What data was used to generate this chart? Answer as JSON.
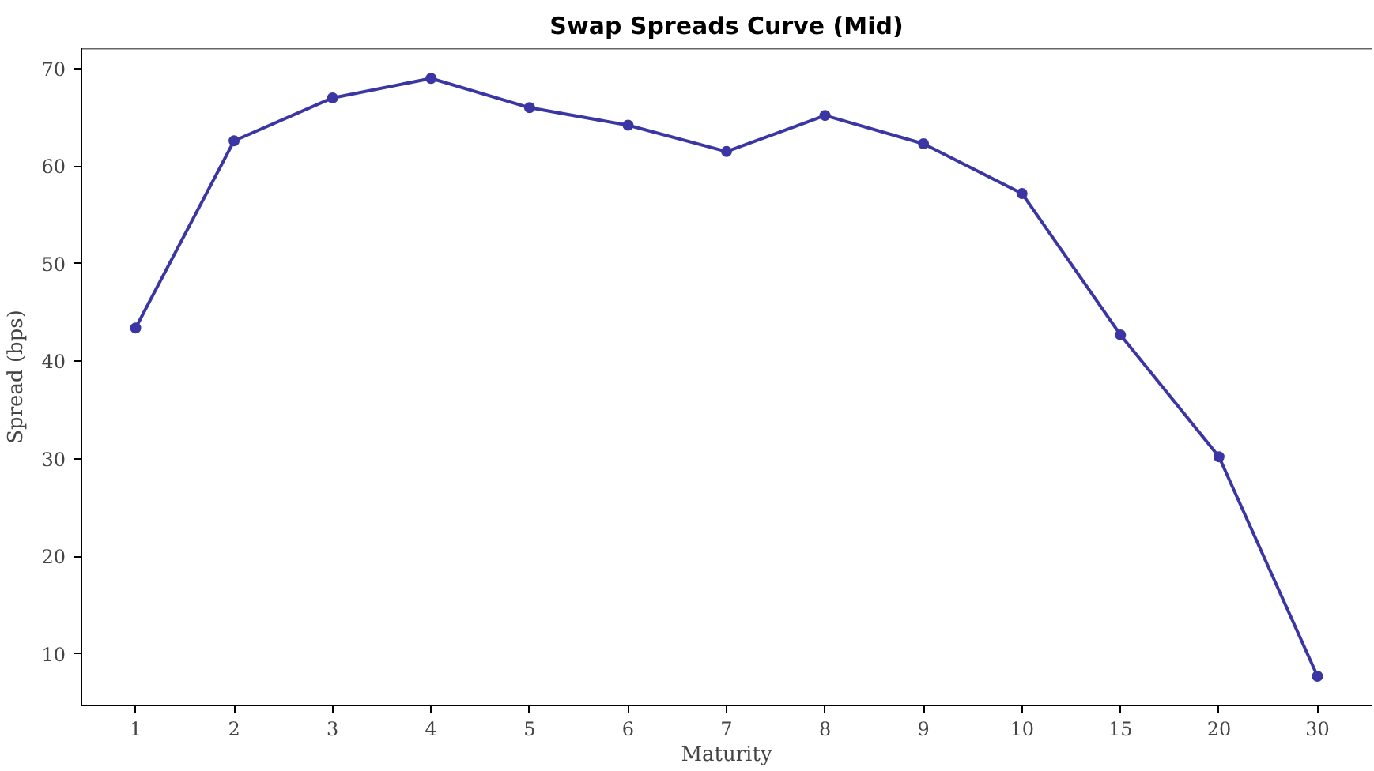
{
  "chart_data": {
    "type": "line",
    "title": "Swap Spreads Curve (Mid)",
    "xlabel": "Maturity",
    "ylabel": "Spread (bps)",
    "categories": [
      "1",
      "2",
      "3",
      "4",
      "5",
      "6",
      "7",
      "8",
      "9",
      "10",
      "15",
      "20",
      "30"
    ],
    "series": [
      {
        "color": "#3b36a3",
        "values": [
          43.4,
          62.6,
          67.0,
          69.0,
          66.0,
          64.2,
          61.5,
          65.2,
          62.3,
          57.2,
          42.7,
          30.2,
          7.7
        ]
      }
    ],
    "ylim": [
      4.7,
      72.1
    ],
    "yticks": [
      10,
      20,
      30,
      40,
      50,
      60,
      70
    ],
    "grid": false,
    "marker": "circle",
    "line_style": "solid"
  }
}
